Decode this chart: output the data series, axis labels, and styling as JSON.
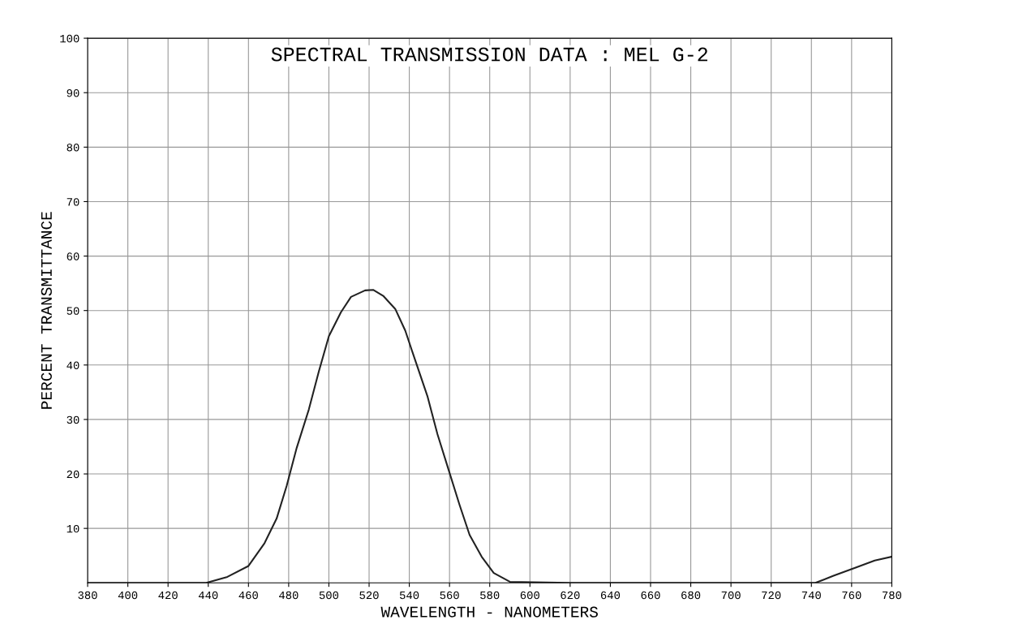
{
  "chart_data": {
    "type": "line",
    "title": "SPECTRAL TRANSMISSION DATA : MEL G-2",
    "xlabel": "WAVELENGTH - NANOMETERS",
    "ylabel": "PERCENT TRANSMITTANCE",
    "xlim": [
      380,
      780
    ],
    "ylim": [
      0,
      100
    ],
    "xticks": [
      380,
      400,
      420,
      440,
      460,
      480,
      500,
      520,
      540,
      560,
      580,
      600,
      620,
      640,
      660,
      680,
      700,
      720,
      740,
      760,
      780
    ],
    "yticks": [
      10,
      20,
      30,
      40,
      50,
      60,
      70,
      80,
      90,
      100
    ],
    "grid": true,
    "marker": "none",
    "line_style": "solid",
    "series": [
      {
        "color": "#222222",
        "x": [
          380,
          420,
          439,
          449.5,
          460,
          468,
          474,
          479,
          484,
          490,
          495,
          500,
          506,
          511,
          518,
          522,
          527,
          533,
          538,
          543,
          549,
          554,
          559.5,
          565,
          570,
          576,
          582,
          590,
          620,
          660,
          700,
          742,
          751,
          762,
          771.5,
          780
        ],
        "values": [
          0,
          0,
          0,
          1.1,
          3.1,
          7.3,
          11.8,
          17.8,
          24.8,
          31.8,
          38.8,
          45.3,
          49.7,
          52.5,
          53.7,
          53.8,
          52.7,
          50.3,
          46.3,
          40.8,
          34.3,
          27.3,
          20.8,
          14.3,
          8.8,
          4.8,
          1.8,
          0.2,
          0,
          0,
          0,
          0,
          1.3,
          2.8,
          4.1,
          4.8
        ]
      }
    ]
  }
}
